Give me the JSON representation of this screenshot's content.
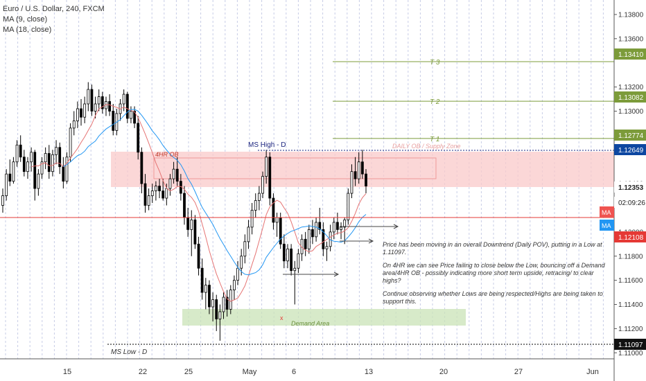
{
  "legend": {
    "symbol": "Euro / U.S. Dollar, 240, FXCM",
    "ma1": "MA (9, close)",
    "ma2": "MA (18, close)"
  },
  "colors": {
    "up": "#ffffff",
    "down": "#000000",
    "ma_fast": "#e57373",
    "ma_slow": "#2196f3",
    "supply_zone": "#f9c9c9",
    "demand_zone": "#c9e3b7",
    "target": "#7c9b3a",
    "last_price": "#0d47a1",
    "ms_low": "#000000",
    "red_line": "#e53935"
  },
  "chart_data": {
    "type": "candlestick",
    "title": "Euro / U.S. Dollar, 240, FXCM",
    "ylim": [
      1.1095,
      1.1392
    ],
    "price_ticks": [
      "1.13800",
      "1.13600",
      "1.13200",
      "1.13000",
      "1.12800",
      "1.12400",
      "1.12000",
      "1.11800",
      "1.11600",
      "1.11400",
      "1.11200",
      "1.11000"
    ],
    "time_ticks": [
      "15",
      "22",
      "25",
      "May",
      "6",
      "13",
      "20",
      "27",
      "Jun"
    ],
    "price_labels": [
      {
        "label": "1.13410",
        "kind": "target"
      },
      {
        "label": "1.13082",
        "kind": "target"
      },
      {
        "label": "1.12774",
        "kind": "target"
      },
      {
        "label": "1.12649",
        "kind": "last"
      },
      {
        "label": "1.12353",
        "kind": "current"
      },
      {
        "label": "02:09:26",
        "kind": "timer"
      },
      {
        "label": "1.12108",
        "kind": "red"
      },
      {
        "label": "1.11097",
        "kind": "mslow"
      }
    ],
    "ma_tags": [
      "MA",
      "MA"
    ],
    "targets": [
      {
        "label": "T 3",
        "price": 1.1341
      },
      {
        "label": "T 2",
        "price": 1.13082
      },
      {
        "label": "T 1",
        "price": 1.12774
      }
    ],
    "annotations": {
      "supply_label": "DAILY OB / Supply Zone",
      "ob_label": "4HR OB",
      "ms_high": "MS High - D",
      "ms_low": "MS Low - D",
      "demand_label": "Demand Area",
      "x_mark": "x"
    },
    "ma_periods": [
      9,
      18
    ],
    "candles": [
      [
        1.1222,
        1.1236,
        1.1216,
        1.123
      ],
      [
        1.123,
        1.1252,
        1.1226,
        1.1248
      ],
      [
        1.1248,
        1.126,
        1.1238,
        1.1242
      ],
      [
        1.1242,
        1.1262,
        1.124,
        1.1258
      ],
      [
        1.1258,
        1.1276,
        1.1254,
        1.1272
      ],
      [
        1.1272,
        1.128,
        1.1258,
        1.1262
      ],
      [
        1.1262,
        1.1268,
        1.1246,
        1.125
      ],
      [
        1.125,
        1.1262,
        1.1244,
        1.1258
      ],
      [
        1.1258,
        1.127,
        1.125,
        1.1266
      ],
      [
        1.1266,
        1.1268,
        1.1226,
        1.1236
      ],
      [
        1.1236,
        1.1252,
        1.123,
        1.1248
      ],
      [
        1.1248,
        1.1262,
        1.1244,
        1.1258
      ],
      [
        1.1258,
        1.127,
        1.1252,
        1.1265
      ],
      [
        1.1265,
        1.1272,
        1.1244,
        1.125
      ],
      [
        1.125,
        1.1268,
        1.1246,
        1.1264
      ],
      [
        1.1264,
        1.1276,
        1.1256,
        1.127
      ],
      [
        1.127,
        1.1274,
        1.1248,
        1.1254
      ],
      [
        1.1254,
        1.1262,
        1.1236,
        1.1242
      ],
      [
        1.1242,
        1.1266,
        1.124,
        1.1262
      ],
      [
        1.1262,
        1.129,
        1.1258,
        1.1286
      ],
      [
        1.1286,
        1.13,
        1.128,
        1.1292
      ],
      [
        1.1292,
        1.1308,
        1.1286,
        1.1302
      ],
      [
        1.1302,
        1.131,
        1.1288,
        1.1295
      ],
      [
        1.1295,
        1.1312,
        1.129,
        1.1306
      ],
      [
        1.1306,
        1.1324,
        1.13,
        1.1318
      ],
      [
        1.1318,
        1.1322,
        1.1296,
        1.13
      ],
      [
        1.13,
        1.1312,
        1.1294,
        1.1306
      ],
      [
        1.1306,
        1.1318,
        1.13,
        1.1312
      ],
      [
        1.1312,
        1.1316,
        1.1298,
        1.1302
      ],
      [
        1.1302,
        1.1312,
        1.1296,
        1.1308
      ],
      [
        1.1308,
        1.1314,
        1.1296,
        1.13
      ],
      [
        1.13,
        1.1306,
        1.128,
        1.1284
      ],
      [
        1.1284,
        1.1302,
        1.128,
        1.1298
      ],
      [
        1.1298,
        1.131,
        1.1292,
        1.1306
      ],
      [
        1.1306,
        1.1318,
        1.13,
        1.1314
      ],
      [
        1.1314,
        1.1316,
        1.129,
        1.1294
      ],
      [
        1.1294,
        1.1304,
        1.129,
        1.13
      ],
      [
        1.13,
        1.1304,
        1.1286,
        1.129
      ],
      [
        1.129,
        1.1296,
        1.126,
        1.1266
      ],
      [
        1.1266,
        1.127,
        1.1232,
        1.124
      ],
      [
        1.124,
        1.1248,
        1.1216,
        1.1222
      ],
      [
        1.1222,
        1.1236,
        1.1218,
        1.123
      ],
      [
        1.123,
        1.124,
        1.1224,
        1.1234
      ],
      [
        1.1234,
        1.1242,
        1.1226,
        1.1238
      ],
      [
        1.1238,
        1.1244,
        1.1228,
        1.1234
      ],
      [
        1.1234,
        1.1244,
        1.1226,
        1.1228
      ],
      [
        1.1228,
        1.124,
        1.1222,
        1.1236
      ],
      [
        1.1236,
        1.1248,
        1.123,
        1.1244
      ],
      [
        1.1244,
        1.1258,
        1.124,
        1.1252
      ],
      [
        1.1252,
        1.1262,
        1.1238,
        1.1242
      ],
      [
        1.1242,
        1.1248,
        1.1226,
        1.1232
      ],
      [
        1.1232,
        1.1238,
        1.1206,
        1.1212
      ],
      [
        1.1212,
        1.122,
        1.1196,
        1.1202
      ],
      [
        1.1202,
        1.1218,
        1.118,
        1.121
      ],
      [
        1.121,
        1.1214,
        1.1186,
        1.119
      ],
      [
        1.119,
        1.1196,
        1.1164,
        1.117
      ],
      [
        1.117,
        1.1178,
        1.1144,
        1.115
      ],
      [
        1.115,
        1.1162,
        1.1136,
        1.1156
      ],
      [
        1.1156,
        1.116,
        1.1132,
        1.1138
      ],
      [
        1.1138,
        1.115,
        1.1126,
        1.1144
      ],
      [
        1.1144,
        1.1148,
        1.1118,
        1.1128
      ],
      [
        1.1128,
        1.114,
        1.111,
        1.1134
      ],
      [
        1.1134,
        1.115,
        1.1128,
        1.1146
      ],
      [
        1.1146,
        1.1152,
        1.113,
        1.1136
      ],
      [
        1.1136,
        1.1156,
        1.1132,
        1.1152
      ],
      [
        1.1152,
        1.1164,
        1.1144,
        1.116
      ],
      [
        1.116,
        1.1176,
        1.1156,
        1.117
      ],
      [
        1.117,
        1.1186,
        1.1164,
        1.118
      ],
      [
        1.118,
        1.1198,
        1.1174,
        1.1192
      ],
      [
        1.1192,
        1.121,
        1.1186,
        1.1204
      ],
      [
        1.1204,
        1.1224,
        1.1198,
        1.1218
      ],
      [
        1.1218,
        1.1232,
        1.1212,
        1.1226
      ],
      [
        1.1226,
        1.1238,
        1.1218,
        1.1232
      ],
      [
        1.1232,
        1.125,
        1.1228,
        1.1246
      ],
      [
        1.1246,
        1.1268,
        1.124,
        1.1262
      ],
      [
        1.1262,
        1.1266,
        1.1222,
        1.1228
      ],
      [
        1.1228,
        1.1232,
        1.1202,
        1.1208
      ],
      [
        1.1208,
        1.1216,
        1.1196,
        1.1212
      ],
      [
        1.1212,
        1.1216,
        1.1186,
        1.119
      ],
      [
        1.119,
        1.1198,
        1.117,
        1.1176
      ],
      [
        1.1176,
        1.119,
        1.117,
        1.1186
      ],
      [
        1.1186,
        1.119,
        1.1164,
        1.1168
      ],
      [
        1.1168,
        1.1176,
        1.114,
        1.117
      ],
      [
        1.117,
        1.1186,
        1.1166,
        1.1182
      ],
      [
        1.1182,
        1.1198,
        1.1176,
        1.1194
      ],
      [
        1.1194,
        1.12,
        1.118,
        1.1186
      ],
      [
        1.1186,
        1.1206,
        1.1182,
        1.1202
      ],
      [
        1.1202,
        1.121,
        1.119,
        1.1196
      ],
      [
        1.1196,
        1.1212,
        1.1192,
        1.1208
      ],
      [
        1.1208,
        1.122,
        1.1198,
        1.1202
      ],
      [
        1.1202,
        1.1208,
        1.118,
        1.1186
      ],
      [
        1.1186,
        1.1192,
        1.1176,
        1.1188
      ],
      [
        1.1188,
        1.1206,
        1.1184,
        1.12
      ],
      [
        1.12,
        1.1212,
        1.1194,
        1.1208
      ],
      [
        1.1208,
        1.1216,
        1.1198,
        1.1202
      ],
      [
        1.1202,
        1.1208,
        1.1194,
        1.1204
      ],
      [
        1.1204,
        1.1212,
        1.119,
        1.121
      ],
      [
        1.121,
        1.1236,
        1.1206,
        1.1232
      ],
      [
        1.1232,
        1.1256,
        1.1228,
        1.125
      ],
      [
        1.125,
        1.1262,
        1.1238,
        1.1244
      ],
      [
        1.1244,
        1.1266,
        1.124,
        1.1258
      ],
      [
        1.1258,
        1.1268,
        1.1244,
        1.1248
      ],
      [
        1.1248,
        1.1252,
        1.1232,
        1.1238
      ]
    ]
  },
  "note": {
    "p1": "Price has been moving in an overall Downtrend (Daily POV), putting in a Low at 1.11097.",
    "p2": "On 4HR we can see Price failing to close below the Low, bouncing off a Demand area/4HR OB - possibly indicating more short term upside, retracing/ to clear highs?",
    "p3": "Continue observing whether Lows are being respected/Highs are being taken to support this."
  }
}
